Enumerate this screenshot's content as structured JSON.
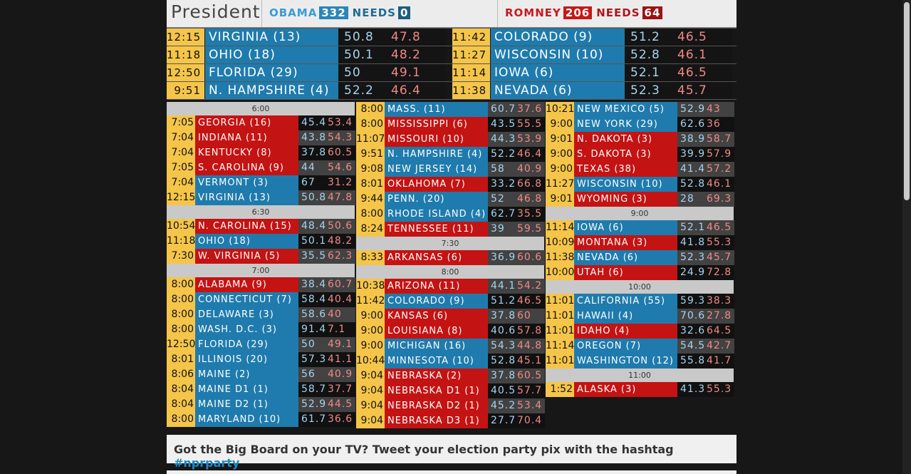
{
  "header": {
    "title": "President",
    "obama": {
      "name": "OBAMA",
      "votes": "332",
      "needs_label": "NEEDS",
      "needs": "0"
    },
    "romney": {
      "name": "ROMNEY",
      "votes": "206",
      "needs_label": "NEEDS",
      "needs": "64"
    }
  },
  "featured": [
    {
      "time": "12:15",
      "state": "VIRGINIA (13)",
      "dem": "50.8",
      "rep": "47.8",
      "winner": "blue"
    },
    {
      "time": "11:18",
      "state": "OHIO (18)",
      "dem": "50.1",
      "rep": "48.2",
      "winner": "blue"
    },
    {
      "time": "12:50",
      "state": "FLORIDA (29)",
      "dem": "50",
      "rep": "49.1",
      "winner": "blue"
    },
    {
      "time": "9:51",
      "state": "N. HAMPSHIRE (4)",
      "dem": "52.2",
      "rep": "46.4",
      "winner": "blue"
    },
    {
      "time": "11:42",
      "state": "COLORADO (9)",
      "dem": "51.2",
      "rep": "46.5",
      "winner": "blue"
    },
    {
      "time": "11:27",
      "state": "WISCONSIN (10)",
      "dem": "52.8",
      "rep": "46.1",
      "winner": "blue"
    },
    {
      "time": "11:14",
      "state": "IOWA (6)",
      "dem": "52.1",
      "rep": "46.5",
      "winner": "blue"
    },
    {
      "time": "11:38",
      "state": "NEVADA (6)",
      "dem": "52.3",
      "rep": "45.7",
      "winner": "blue"
    }
  ],
  "columns": [
    [
      {
        "band": "6:00"
      },
      {
        "time": "7:05",
        "state": "GEORGIA (16)",
        "dem": "45.4",
        "rep": "53.4",
        "winner": "red",
        "shade": "blk"
      },
      {
        "time": "7:04",
        "state": "INDIANA (11)",
        "dem": "43.8",
        "rep": "54.3",
        "winner": "red",
        "shade": "gry"
      },
      {
        "time": "7:04",
        "state": "KENTUCKY (8)",
        "dem": "37.8",
        "rep": "60.5",
        "winner": "red",
        "shade": "blk"
      },
      {
        "time": "7:05",
        "state": "S. CAROLINA (9)",
        "dem": "44",
        "rep": "54.6",
        "winner": "red",
        "shade": "gry"
      },
      {
        "time": "7:04",
        "state": "VERMONT (3)",
        "dem": "67",
        "rep": "31.2",
        "winner": "blue",
        "shade": "blk"
      },
      {
        "time": "12:15",
        "state": "VIRGINIA (13)",
        "dem": "50.8",
        "rep": "47.8",
        "winner": "blue",
        "shade": "gry"
      },
      {
        "band": "6:30"
      },
      {
        "time": "10:54",
        "state": "N. CAROLINA (15)",
        "dem": "48.4",
        "rep": "50.6",
        "winner": "red",
        "shade": "gry"
      },
      {
        "time": "11:18",
        "state": "OHIO (18)",
        "dem": "50.1",
        "rep": "48.2",
        "winner": "blue",
        "shade": "blk"
      },
      {
        "time": "7:30",
        "state": "W. VIRGINIA (5)",
        "dem": "35.5",
        "rep": "62.3",
        "winner": "red",
        "shade": "gry"
      },
      {
        "band": "7:00"
      },
      {
        "time": "8:00",
        "state": "ALABAMA (9)",
        "dem": "38.4",
        "rep": "60.7",
        "winner": "red",
        "shade": "gry"
      },
      {
        "time": "8:00",
        "state": "CONNECTICUT (7)",
        "dem": "58.4",
        "rep": "40.4",
        "winner": "blue",
        "shade": "blk"
      },
      {
        "time": "8:00",
        "state": "DELAWARE (3)",
        "dem": "58.6",
        "rep": "40",
        "winner": "blue",
        "shade": "gry"
      },
      {
        "time": "8:00",
        "state": "WASH. D.C. (3)",
        "dem": "91.4",
        "rep": "7.1",
        "winner": "blue",
        "shade": "blk"
      },
      {
        "time": "12:50",
        "state": "FLORIDA (29)",
        "dem": "50",
        "rep": "49.1",
        "winner": "blue",
        "shade": "gry"
      },
      {
        "time": "8:01",
        "state": "ILLINOIS (20)",
        "dem": "57.3",
        "rep": "41.1",
        "winner": "blue",
        "shade": "blk"
      },
      {
        "time": "8:06",
        "state": "MAINE (2)",
        "dem": "56",
        "rep": "40.9",
        "winner": "blue",
        "shade": "gry"
      },
      {
        "time": "8:04",
        "state": "MAINE D1 (1)",
        "dem": "58.7",
        "rep": "37.7",
        "winner": "blue",
        "shade": "blk"
      },
      {
        "time": "8:04",
        "state": "MAINE D2 (1)",
        "dem": "52.9",
        "rep": "44.5",
        "winner": "blue",
        "shade": "gry"
      },
      {
        "time": "8:00",
        "state": "MARYLAND (10)",
        "dem": "61.7",
        "rep": "36.6",
        "winner": "blue",
        "shade": "blk"
      }
    ],
    [
      {
        "time": "8:00",
        "state": "MASS. (11)",
        "dem": "60.7",
        "rep": "37.6",
        "winner": "blue",
        "shade": "gry"
      },
      {
        "time": "8:00",
        "state": "MISSISSIPPI (6)",
        "dem": "43.5",
        "rep": "55.5",
        "winner": "red",
        "shade": "blk"
      },
      {
        "time": "11:07",
        "state": "MISSOURI (10)",
        "dem": "44.3",
        "rep": "53.9",
        "winner": "red",
        "shade": "gry"
      },
      {
        "time": "9:51",
        "state": "N. HAMPSHIRE (4)",
        "dem": "52.2",
        "rep": "46.4",
        "winner": "blue",
        "shade": "blk"
      },
      {
        "time": "9:08",
        "state": "NEW JERSEY (14)",
        "dem": "58",
        "rep": "40.9",
        "winner": "blue",
        "shade": "gry"
      },
      {
        "time": "8:01",
        "state": "OKLAHOMA (7)",
        "dem": "33.2",
        "rep": "66.8",
        "winner": "red",
        "shade": "blk"
      },
      {
        "time": "9:44",
        "state": "PENN. (20)",
        "dem": "52",
        "rep": "46.8",
        "winner": "blue",
        "shade": "gry"
      },
      {
        "time": "8:00",
        "state": "RHODE ISLAND (4)",
        "dem": "62.7",
        "rep": "35.5",
        "winner": "blue",
        "shade": "blk"
      },
      {
        "time": "8:24",
        "state": "TENNESSEE (11)",
        "dem": "39",
        "rep": "59.5",
        "winner": "red",
        "shade": "gry"
      },
      {
        "band": "7:30"
      },
      {
        "time": "8:33",
        "state": "ARKANSAS (6)",
        "dem": "36.9",
        "rep": "60.6",
        "winner": "red",
        "shade": "gry"
      },
      {
        "band": "8:00"
      },
      {
        "time": "10:38",
        "state": "ARIZONA (11)",
        "dem": "44.1",
        "rep": "54.2",
        "winner": "red",
        "shade": "gry"
      },
      {
        "time": "11:42",
        "state": "COLORADO (9)",
        "dem": "51.2",
        "rep": "46.5",
        "winner": "blue",
        "shade": "blk"
      },
      {
        "time": "9:00",
        "state": "KANSAS (6)",
        "dem": "37.8",
        "rep": "60",
        "winner": "red",
        "shade": "gry"
      },
      {
        "time": "9:00",
        "state": "LOUISIANA (8)",
        "dem": "40.6",
        "rep": "57.8",
        "winner": "red",
        "shade": "blk"
      },
      {
        "time": "9:00",
        "state": "MICHIGAN (16)",
        "dem": "54.3",
        "rep": "44.8",
        "winner": "blue",
        "shade": "gry"
      },
      {
        "time": "10:44",
        "state": "MINNESOTA (10)",
        "dem": "52.8",
        "rep": "45.1",
        "winner": "blue",
        "shade": "blk"
      },
      {
        "time": "9:04",
        "state": "NEBRASKA (2)",
        "dem": "37.8",
        "rep": "60.5",
        "winner": "red",
        "shade": "gry"
      },
      {
        "time": "9:04",
        "state": "NEBRASKA D1 (1)",
        "dem": "40.5",
        "rep": "57.7",
        "winner": "red",
        "shade": "blk"
      },
      {
        "time": "9:04",
        "state": "NEBRASKA D2 (1)",
        "dem": "45.2",
        "rep": "53.4",
        "winner": "red",
        "shade": "gry"
      },
      {
        "time": "9:04",
        "state": "NEBRASKA D3 (1)",
        "dem": "27.7",
        "rep": "70.4",
        "winner": "red",
        "shade": "blk"
      }
    ],
    [
      {
        "time": "10:21",
        "state": "NEW MEXICO (5)",
        "dem": "52.9",
        "rep": "43",
        "winner": "blue",
        "shade": "gry"
      },
      {
        "time": "9:00",
        "state": "NEW YORK (29)",
        "dem": "62.6",
        "rep": "36",
        "winner": "blue",
        "shade": "blk"
      },
      {
        "time": "9:01",
        "state": "N. DAKOTA (3)",
        "dem": "38.9",
        "rep": "58.7",
        "winner": "red",
        "shade": "gry"
      },
      {
        "time": "9:00",
        "state": "S. DAKOTA (3)",
        "dem": "39.9",
        "rep": "57.9",
        "winner": "red",
        "shade": "blk"
      },
      {
        "time": "9:00",
        "state": "TEXAS (38)",
        "dem": "41.4",
        "rep": "57.2",
        "winner": "red",
        "shade": "gry"
      },
      {
        "time": "11:27",
        "state": "WISCONSIN (10)",
        "dem": "52.8",
        "rep": "46.1",
        "winner": "blue",
        "shade": "blk"
      },
      {
        "time": "9:01",
        "state": "WYOMING (3)",
        "dem": "28",
        "rep": "69.3",
        "winner": "red",
        "shade": "gry"
      },
      {
        "band": "9:00"
      },
      {
        "time": "11:14",
        "state": "IOWA (6)",
        "dem": "52.1",
        "rep": "46.5",
        "winner": "blue",
        "shade": "gry"
      },
      {
        "time": "10:09",
        "state": "MONTANA (3)",
        "dem": "41.8",
        "rep": "55.3",
        "winner": "red",
        "shade": "blk"
      },
      {
        "time": "11:38",
        "state": "NEVADA (6)",
        "dem": "52.3",
        "rep": "45.7",
        "winner": "blue",
        "shade": "gry"
      },
      {
        "time": "10:00",
        "state": "UTAH (6)",
        "dem": "24.9",
        "rep": "72.8",
        "winner": "red",
        "shade": "blk"
      },
      {
        "band": "10:00"
      },
      {
        "time": "11:01",
        "state": "CALIFORNIA (55)",
        "dem": "59.3",
        "rep": "38.3",
        "winner": "blue",
        "shade": "blk"
      },
      {
        "time": "11:01",
        "state": "HAWAII (4)",
        "dem": "70.6",
        "rep": "27.8",
        "winner": "blue",
        "shade": "gry"
      },
      {
        "time": "11:01",
        "state": "IDAHO (4)",
        "dem": "32.6",
        "rep": "64.5",
        "winner": "red",
        "shade": "blk"
      },
      {
        "time": "11:14",
        "state": "OREGON (7)",
        "dem": "54.5",
        "rep": "42.7",
        "winner": "blue",
        "shade": "gry"
      },
      {
        "time": "11:01",
        "state": "WASHINGTON (12)",
        "dem": "55.8",
        "rep": "41.7",
        "winner": "blue",
        "shade": "blk"
      },
      {
        "band": "11:00"
      },
      {
        "time": "1:52",
        "state": "ALASKA (3)",
        "dem": "41.3",
        "rep": "55.3",
        "winner": "red",
        "shade": "blk"
      }
    ]
  ],
  "footer": {
    "text": "Got the Big Board on your TV? Tweet your election party pix with the hashtag ",
    "hashtag": "#nprparty"
  },
  "colors": {
    "dem": "#1f7bad",
    "rep": "#c41313",
    "time": "#f5c54a"
  }
}
